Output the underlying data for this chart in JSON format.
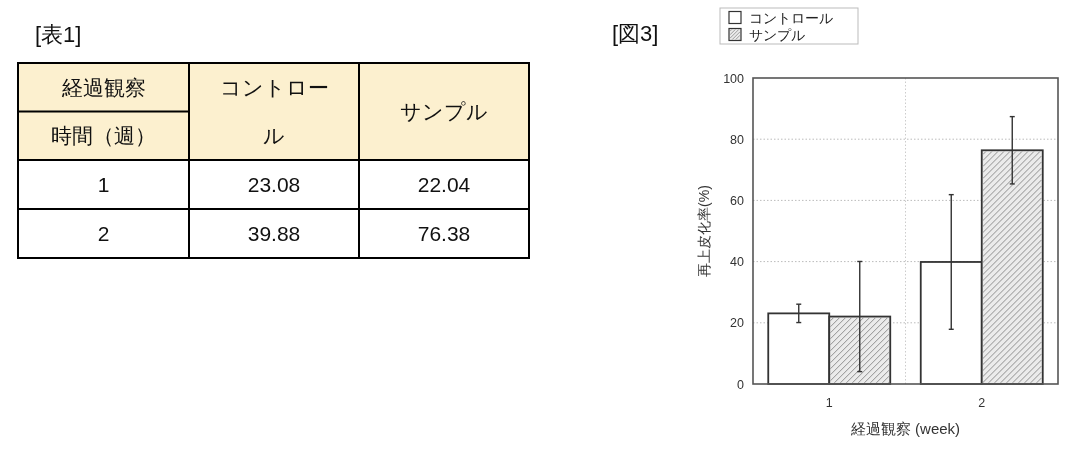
{
  "chart_data": [
    {
      "type": "other",
      "title": "[表1]",
      "annotations": [
        "経過観察",
        "時間（週）",
        "コントロール",
        "サンプル",
        "1",
        "23.08",
        "22.04",
        "2",
        "39.88",
        "76.38"
      ]
    },
    {
      "type": "bar",
      "title": "[図3]",
      "x": [
        1,
        2
      ],
      "xlim": [
        0.5,
        2.5
      ],
      "xticks": [
        1,
        2
      ],
      "series": [
        {
          "name": "コントロール",
          "color": "#ffffff",
          "values": [
            23.08,
            39.88
          ],
          "errors": [
            3,
            22
          ]
        },
        {
          "name": "サンプル",
          "color": "#ebebeb",
          "values": [
            22.04,
            76.38
          ],
          "errors": [
            18,
            11
          ]
        }
      ],
      "xlabel": "経過観察 (week)",
      "ylabel": "再上皮化率(%)",
      "ylim": [
        0,
        100
      ],
      "yticks": [
        0,
        20,
        40,
        60,
        80,
        100
      ],
      "grid": "y",
      "legend": "top left",
      "ref_lines": [
        {
          "axis": "x",
          "value": 1.5,
          "color": "#cccccc",
          "line_style": "dotted"
        }
      ]
    }
  ]
}
